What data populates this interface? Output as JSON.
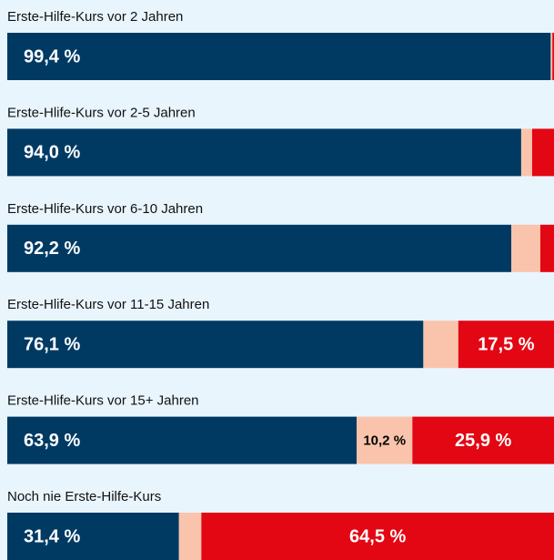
{
  "chart_data": {
    "type": "bar",
    "orientation": "horizontal",
    "stacked": true,
    "categories": [
      "Erste-Hilfe-Kurs vor 2 Jahren",
      "Erste-Hlife-Kurs vor 2-5 Jahren",
      "Erste-Hlife-Kurs vor 6-10 Jahren",
      "Erste-Hlife-Kurs vor 11-15 Jahren",
      "Erste-Hlife-Kurs vor 15+ Jahren",
      "Noch nie Erste-Hilfe-Kurs"
    ],
    "series": [
      {
        "color": "#003a63",
        "values": [
          99.4,
          94.0,
          92.2,
          76.1,
          63.9,
          31.4
        ],
        "value_labels": [
          "99,4 %",
          "94,0 %",
          "92,2 %",
          "76,1 %",
          "63,9 %",
          "31,4 %"
        ]
      },
      {
        "color": "#f9c4ab",
        "values": [
          0.3,
          2.0,
          5.3,
          6.4,
          10.2,
          4.1
        ],
        "value_labels": [
          null,
          null,
          null,
          null,
          "10,2 %",
          null
        ]
      },
      {
        "color": "#e30613",
        "values": [
          0.3,
          4.0,
          2.5,
          17.5,
          25.9,
          64.5
        ],
        "value_labels": [
          null,
          null,
          null,
          "17,5 %",
          "25,9 %",
          "64,5 %"
        ]
      }
    ]
  }
}
